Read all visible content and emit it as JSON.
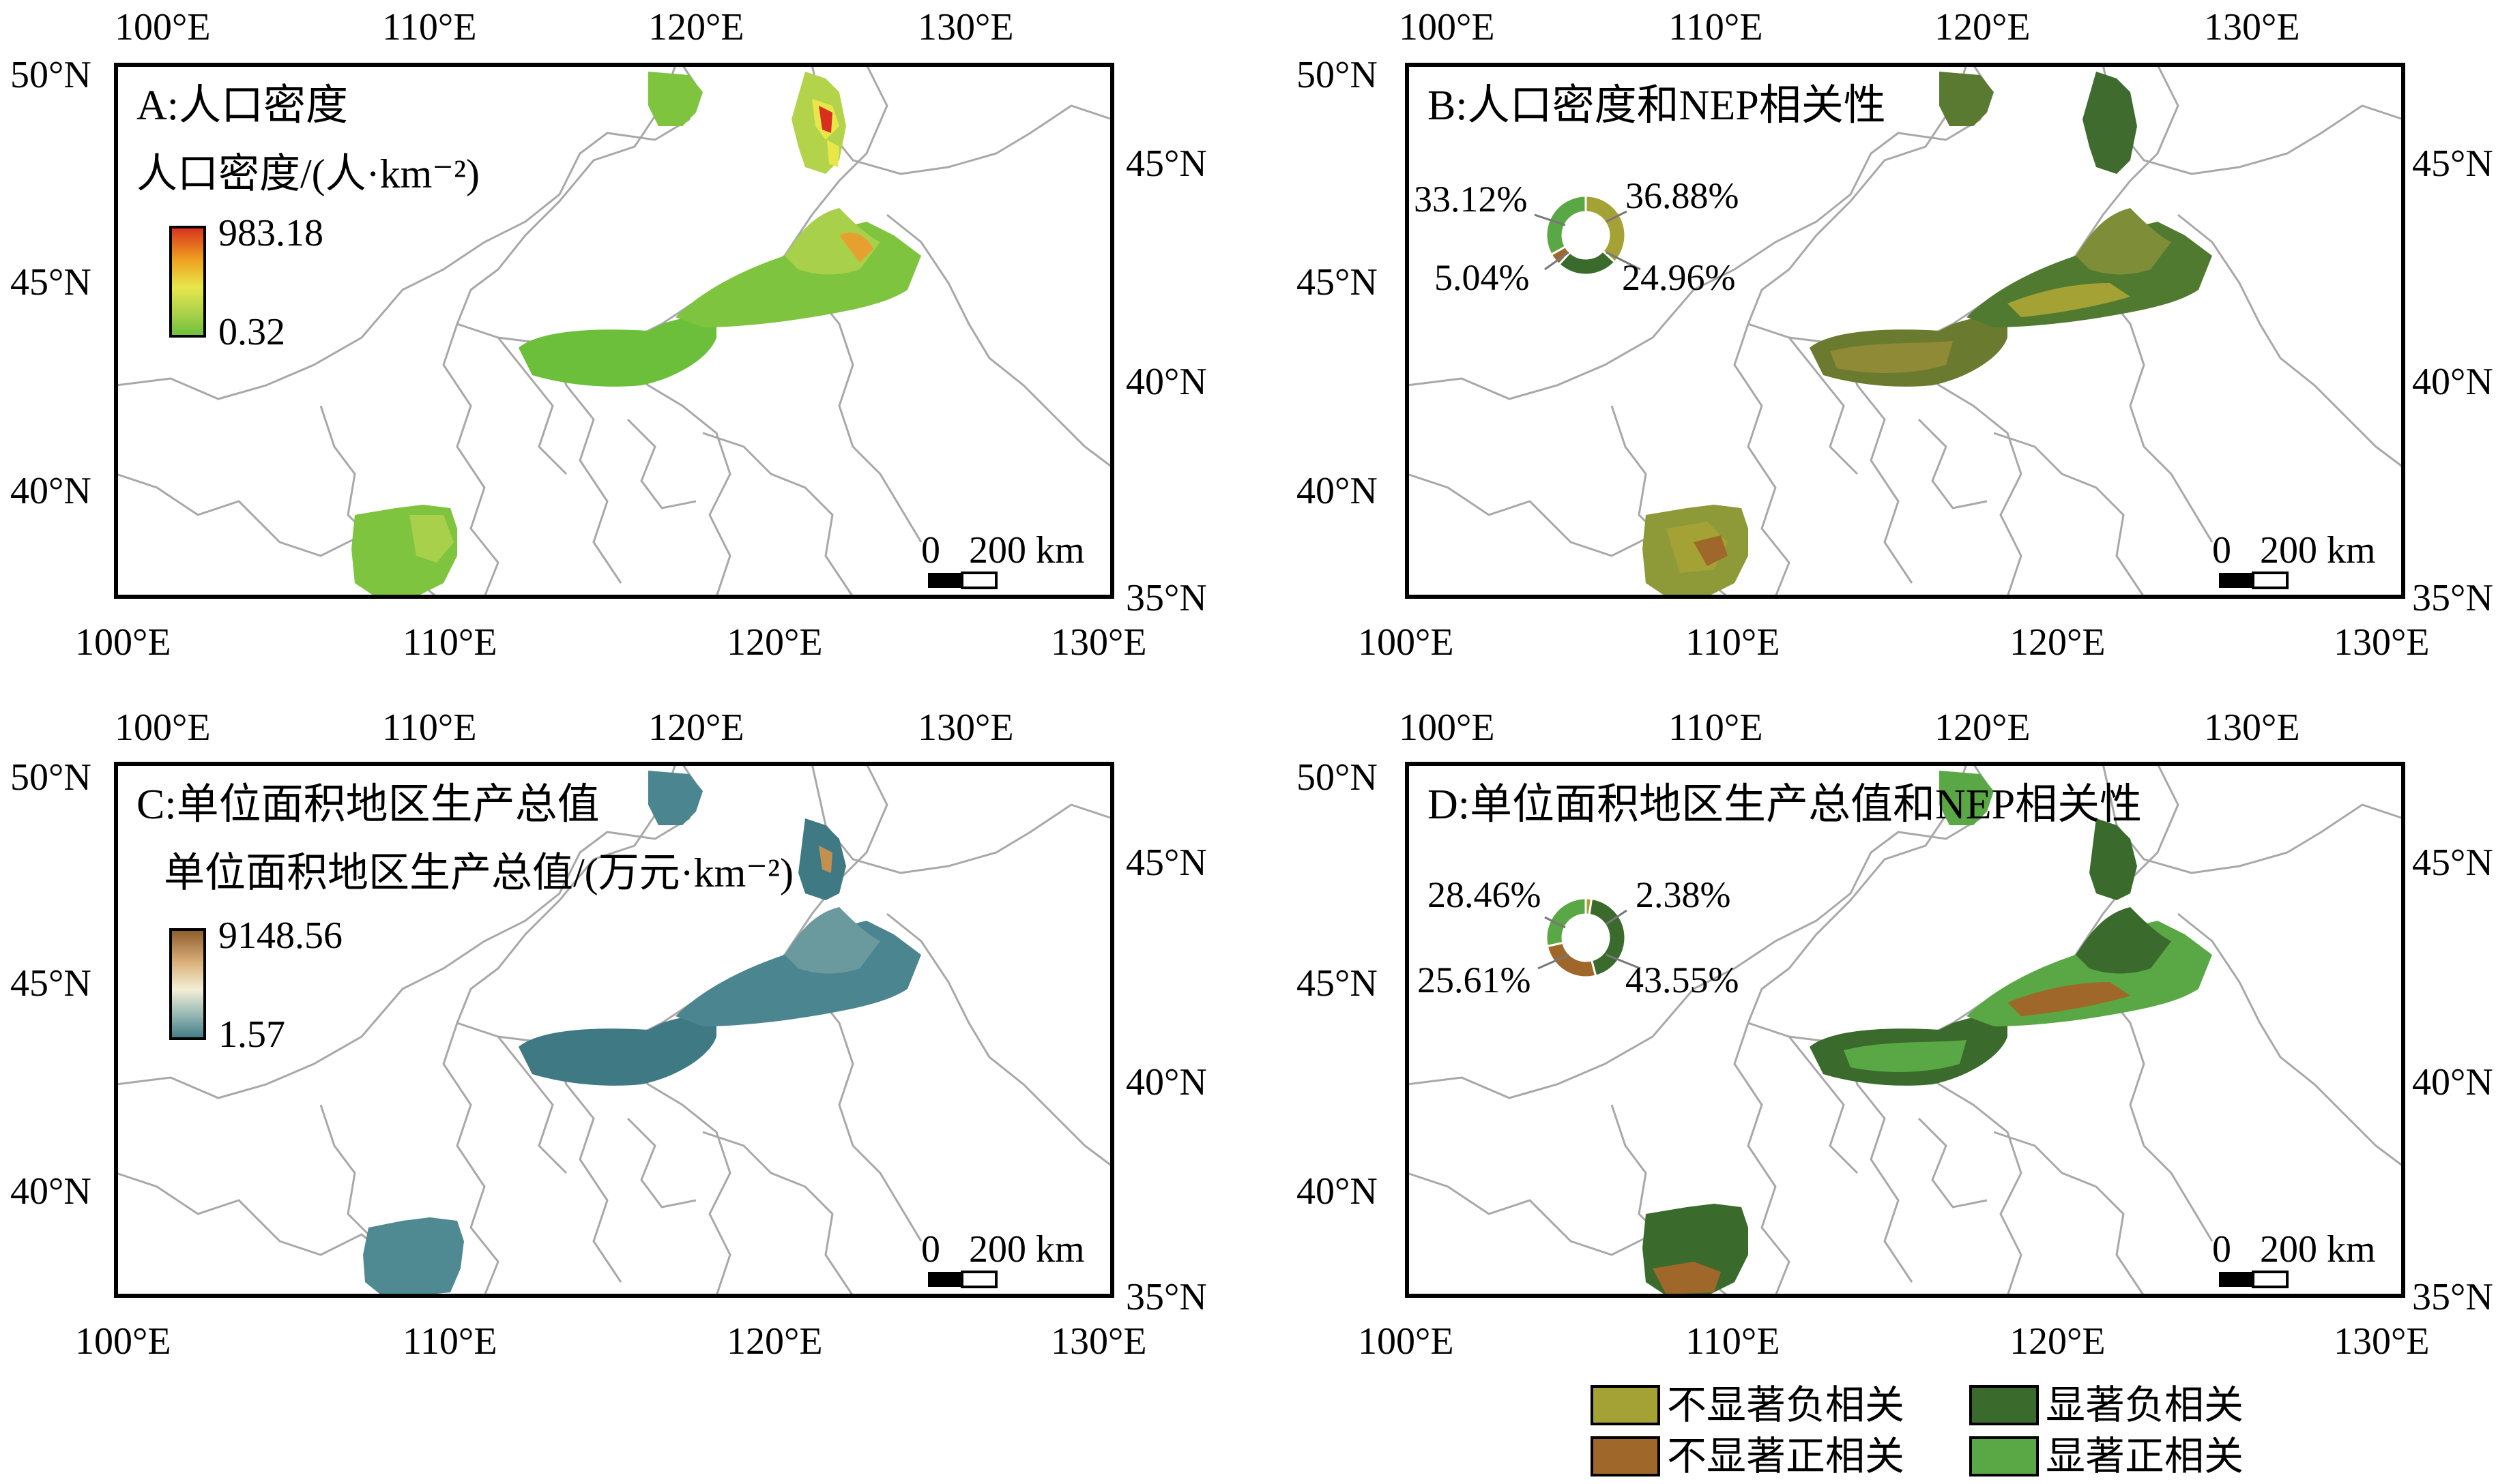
{
  "axes": {
    "lon_labels": [
      "100°E",
      "110°E",
      "120°E",
      "130°E"
    ],
    "lat_labels_left": [
      "50°N",
      "45°N",
      "40°N"
    ],
    "lat_labels_right": [
      "45°N",
      "40°N",
      "35°N"
    ]
  },
  "scale_bar": {
    "zero": "0",
    "value": "200 km"
  },
  "panels": [
    {
      "id": "A",
      "title": "A:人口密度",
      "legend_title": "人口密度/(人·km⁻²)",
      "legend_max": "983.18",
      "legend_min": "0.32",
      "colors": [
        "#d7301f",
        "#f0a020",
        "#e7e74a",
        "#a8d04a",
        "#6bbf3a"
      ]
    },
    {
      "id": "B",
      "title": "B:人口密度和NEP相关性",
      "donut": [
        {
          "label": "36.88%",
          "value": 36.88,
          "color": "#a5a235"
        },
        {
          "label": "24.96%",
          "value": 24.96,
          "color": "#3a6b2c"
        },
        {
          "label": "5.04%",
          "value": 5.04,
          "color": "#a0672b"
        },
        {
          "label": "33.12%",
          "value": 33.12,
          "color": "#5aa845"
        }
      ]
    },
    {
      "id": "C",
      "title": "C:单位面积地区生产总值",
      "legend_title": "单位面积地区生产总值/(万元·km⁻²)",
      "legend_max": "9148.56",
      "legend_min": "1.57",
      "colors": [
        "#8c5a2a",
        "#d9b07a",
        "#f3efd6",
        "#8fb3b0",
        "#3f7a84"
      ]
    },
    {
      "id": "D",
      "title": "D:单位面积地区生产总值和NEP相关性",
      "donut": [
        {
          "label": "2.38%",
          "value": 2.38,
          "color": "#a5a235"
        },
        {
          "label": "43.55%",
          "value": 43.55,
          "color": "#3a6b2c"
        },
        {
          "label": "25.61%",
          "value": 25.61,
          "color": "#a0672b"
        },
        {
          "label": "28.46%",
          "value": 28.46,
          "color": "#5aa845"
        }
      ]
    }
  ],
  "legend": [
    {
      "label": "不显著负相关",
      "color": "#a5a235"
    },
    {
      "label": "显著负相关",
      "color": "#3a6b2c"
    },
    {
      "label": "不显著正相关",
      "color": "#a0672b"
    },
    {
      "label": "显著正相关",
      "color": "#5aa845"
    }
  ]
}
